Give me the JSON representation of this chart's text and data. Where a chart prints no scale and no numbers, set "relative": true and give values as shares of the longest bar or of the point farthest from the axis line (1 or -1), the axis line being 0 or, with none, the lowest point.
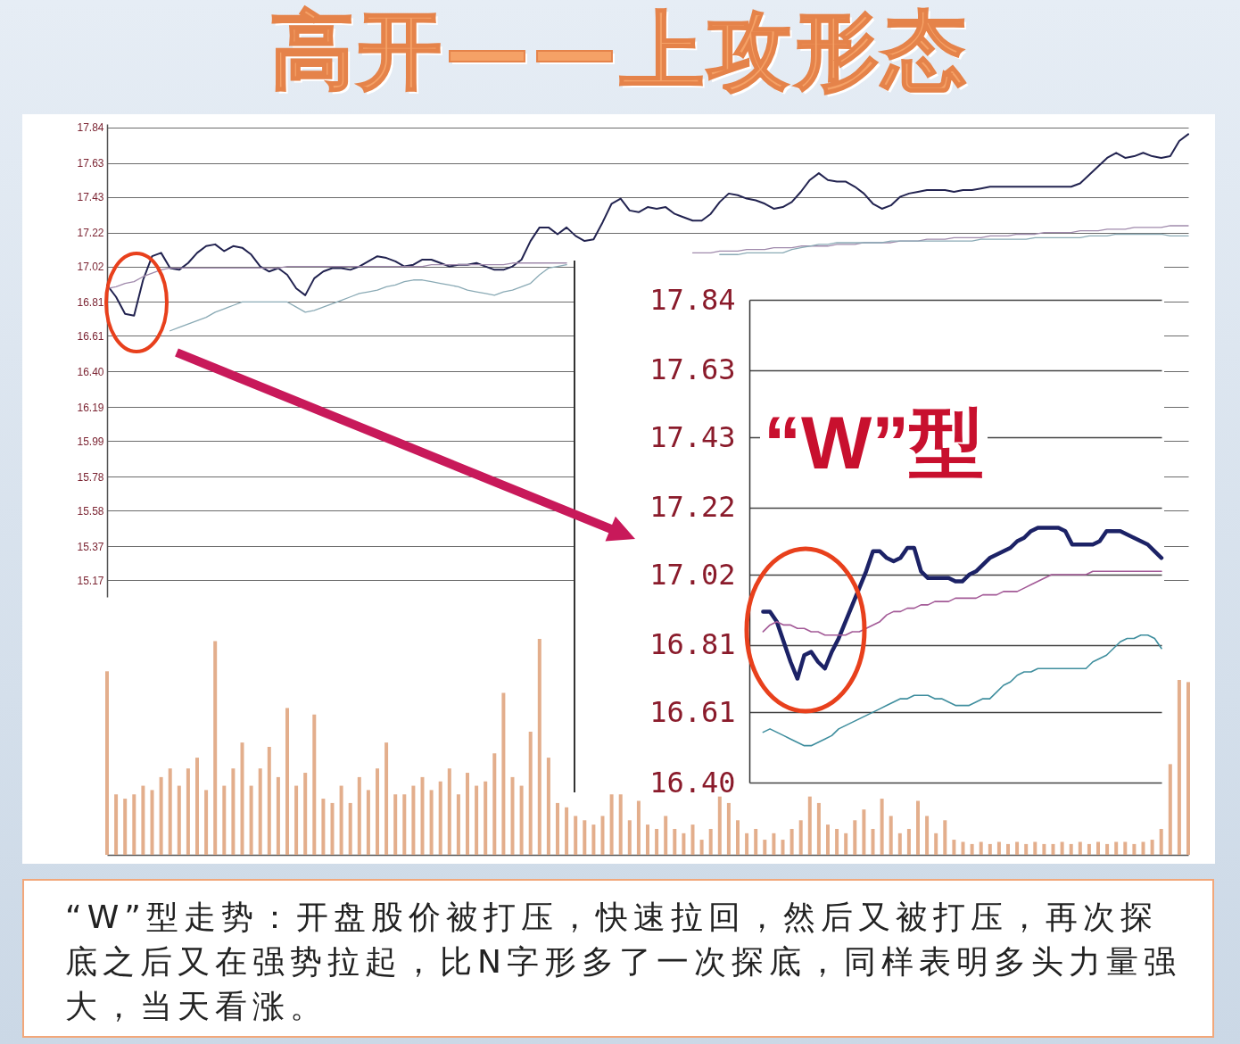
{
  "chart_data": [
    {
      "type": "line",
      "title": "高开——上攻形态",
      "annotations": [
        "“W”型走势：开盘股价被打压，快速拉回，然后又被打压，再次探底之后又在强势拉起，比N字形多了一次探底，同样表明多头力量强大，当天看涨。"
      ],
      "categories": [
        null,
        null,
        null,
        null,
        null,
        null,
        null,
        null,
        null,
        null,
        null,
        null,
        null,
        null,
        null,
        null,
        null,
        null,
        null,
        null,
        null,
        null,
        null,
        null,
        null,
        null,
        null,
        null,
        null,
        null,
        null,
        null,
        null,
        null,
        null,
        null,
        null,
        null,
        null,
        null,
        null,
        null,
        null,
        null,
        null,
        null,
        null,
        null,
        null,
        null,
        null,
        null,
        null,
        null,
        null,
        null,
        null,
        null,
        null,
        null,
        null,
        null,
        null,
        null,
        null,
        null,
        null,
        null,
        null,
        null,
        null,
        null,
        null,
        null,
        null,
        null,
        null,
        null,
        null,
        null,
        null,
        null,
        null,
        null,
        null,
        null,
        null,
        null,
        null,
        null,
        null,
        null,
        null,
        null,
        null,
        null,
        null,
        null,
        null,
        null,
        null,
        null,
        null,
        null,
        null,
        null,
        null,
        null,
        null,
        null,
        null,
        null,
        null,
        null,
        null,
        null,
        null,
        null,
        null,
        null,
        null
      ],
      "series": [
        {
          "color": "#222350",
          "values": [
            16.91,
            16.84,
            16.74,
            16.73,
            16.94,
            17.08,
            17.1,
            17.01,
            17.0,
            17.04,
            17.1,
            17.14,
            17.15,
            17.11,
            17.14,
            17.13,
            17.09,
            17.02,
            16.99,
            17.01,
            16.97,
            16.89,
            16.85,
            16.95,
            16.99,
            17.01,
            17.01,
            17.0,
            17.02,
            17.05,
            17.08,
            17.07,
            17.05,
            17.02,
            17.03,
            17.06,
            17.06,
            17.04,
            17.02,
            17.03,
            17.03,
            17.04,
            17.02,
            17.0,
            17.0,
            17.02,
            17.06,
            17.17,
            17.25,
            17.25,
            17.21,
            17.25,
            17.2,
            17.17,
            17.18,
            17.28,
            17.39,
            17.42,
            17.35,
            17.34,
            17.37,
            17.36,
            17.37,
            17.33,
            17.31,
            17.29,
            17.29,
            17.33,
            17.4,
            17.45,
            17.44,
            17.42,
            17.41,
            17.39,
            17.36,
            17.37,
            17.4,
            17.46,
            17.53,
            17.57,
            17.53,
            17.52,
            17.52,
            17.49,
            17.45,
            17.39,
            17.36,
            17.38,
            17.43,
            17.45,
            17.46,
            17.47,
            17.47,
            17.47,
            17.46,
            17.47,
            17.47,
            17.48,
            17.49,
            17.49,
            17.49,
            17.49,
            17.49,
            17.49,
            17.49,
            17.49,
            17.49,
            17.49,
            17.51,
            17.56,
            17.61,
            17.66,
            17.69,
            17.66,
            17.67,
            17.69,
            17.67,
            17.66,
            17.67,
            17.76,
            17.8
          ]
        },
        {
          "color": "#a08aac",
          "values": [
            16.89,
            16.9,
            16.92,
            16.93,
            16.96,
            16.98,
            17.0,
            17.01,
            17.01,
            17.01,
            17.01,
            17.01,
            17.01,
            17.01,
            17.01,
            17.01,
            17.01,
            17.01,
            17.01,
            17.01,
            17.02,
            17.02,
            17.02,
            17.02,
            17.02,
            17.02,
            17.02,
            17.02,
            17.02,
            17.02,
            17.02,
            17.02,
            17.02,
            17.02,
            17.02,
            17.02,
            17.03,
            17.03,
            17.03,
            17.03,
            17.03,
            17.03,
            17.03,
            17.03,
            17.03,
            17.04,
            17.04,
            17.04,
            17.04,
            17.04,
            17.04,
            17.04,
            null,
            null,
            null,
            null,
            null,
            null,
            null,
            null,
            null,
            null,
            null,
            null,
            null,
            17.1,
            17.1,
            17.1,
            17.11,
            17.11,
            17.11,
            17.12,
            17.12,
            17.12,
            17.13,
            17.13,
            17.13,
            17.14,
            17.14,
            17.14,
            17.14,
            17.15,
            17.15,
            17.15,
            17.16,
            17.16,
            17.16,
            17.16,
            17.17,
            17.17,
            17.17,
            17.18,
            17.18,
            17.18,
            17.19,
            17.19,
            17.19,
            17.19,
            17.2,
            17.2,
            17.2,
            17.21,
            17.21,
            17.21,
            17.22,
            17.22,
            17.22,
            17.22,
            17.23,
            17.23,
            17.23,
            17.24,
            17.24,
            17.24,
            17.25,
            17.25,
            17.25,
            17.25,
            17.26,
            17.26,
            17.26
          ]
        },
        {
          "color": "#8aaab5",
          "values": [
            null,
            null,
            null,
            null,
            null,
            null,
            null,
            16.64,
            16.66,
            16.68,
            16.7,
            16.72,
            16.75,
            16.77,
            16.79,
            16.81,
            16.81,
            16.81,
            16.81,
            16.81,
            16.81,
            16.78,
            16.75,
            16.76,
            16.78,
            16.8,
            16.82,
            16.84,
            16.86,
            16.87,
            16.88,
            16.9,
            16.91,
            16.93,
            16.94,
            16.94,
            16.93,
            16.92,
            16.91,
            16.9,
            16.88,
            16.87,
            16.86,
            16.85,
            16.87,
            16.88,
            16.9,
            16.92,
            16.97,
            17.01,
            17.02,
            17.03,
            null,
            null,
            null,
            null,
            null,
            null,
            null,
            null,
            null,
            null,
            null,
            null,
            null,
            null,
            null,
            null,
            17.09,
            17.09,
            17.09,
            17.1,
            17.1,
            17.1,
            17.1,
            17.1,
            17.12,
            17.13,
            17.14,
            17.15,
            17.15,
            17.16,
            17.16,
            17.16,
            17.16,
            17.16,
            17.16,
            17.17,
            17.17,
            17.17,
            17.17,
            17.17,
            17.17,
            17.17,
            17.17,
            17.17,
            17.17,
            17.18,
            17.18,
            17.18,
            17.18,
            17.18,
            17.18,
            17.19,
            17.19,
            17.19,
            17.19,
            17.19,
            17.19,
            17.2,
            17.2,
            17.2,
            17.21,
            17.21,
            17.21,
            17.21,
            17.21,
            17.21,
            17.2,
            17.2,
            17.2
          ]
        }
      ],
      "ylim": [
        15.07,
        17.86
      ],
      "yticks": [
        17.84,
        17.63,
        17.43,
        17.22,
        17.02,
        16.81,
        16.61,
        {
          "value": 16.4,
          "label": "16.40"
        },
        16.19,
        15.99,
        15.78,
        15.58,
        15.37,
        15.17
      ],
      "grid": "y"
    },
    {
      "type": "bar",
      "relative": true,
      "color": "#e3ae8c",
      "categories": [
        null,
        null,
        null,
        null,
        null,
        null,
        null,
        null,
        null,
        null,
        null,
        null,
        null,
        null,
        null,
        null,
        null,
        null,
        null,
        null,
        null,
        null,
        null,
        null,
        null,
        null,
        null,
        null,
        null,
        null,
        null,
        null,
        null,
        null,
        null,
        null,
        null,
        null,
        null,
        null,
        null,
        null,
        null,
        null,
        null,
        null,
        null,
        null,
        null,
        null,
        null,
        null,
        null,
        null,
        null,
        null,
        null,
        null,
        null,
        null,
        null,
        null,
        null,
        null,
        null,
        null,
        null,
        null,
        null,
        null,
        null,
        null,
        null,
        null,
        null,
        null,
        null,
        null,
        null,
        null,
        null,
        null,
        null,
        null,
        null,
        null,
        null,
        null,
        null,
        null,
        null,
        null,
        null,
        null,
        null,
        null,
        null,
        null,
        null,
        null,
        null,
        null,
        null,
        null,
        null,
        null,
        null,
        null,
        null,
        null,
        null,
        null,
        null,
        null,
        null,
        null,
        null,
        null,
        null,
        null,
        null
      ],
      "values": [
        0.85,
        0.28,
        0.26,
        0.28,
        0.32,
        0.3,
        0.36,
        0.4,
        0.32,
        0.4,
        0.45,
        0.3,
        0.99,
        0.32,
        0.4,
        0.52,
        0.32,
        0.4,
        0.5,
        0.36,
        0.68,
        0.32,
        0.38,
        0.65,
        0.26,
        0.24,
        0.32,
        0.24,
        0.36,
        0.3,
        0.4,
        0.52,
        0.28,
        0.28,
        0.32,
        0.36,
        0.3,
        0.34,
        0.4,
        0.28,
        0.38,
        0.32,
        0.34,
        0.47,
        0.75,
        0.36,
        0.32,
        0.57,
        1,
        0.45,
        0.24,
        0.22,
        0.18,
        0.16,
        0.14,
        0.18,
        0.28,
        0.28,
        0.16,
        0.25,
        0.14,
        0.12,
        0.18,
        0.12,
        0.1,
        0.14,
        0.07,
        0.12,
        0.27,
        0.24,
        0.16,
        0.1,
        0.12,
        0.07,
        0.1,
        0.07,
        0.12,
        0.16,
        0.27,
        0.24,
        0.14,
        0.12,
        0.1,
        0.16,
        0.21,
        0.12,
        0.26,
        0.18,
        0.1,
        0.12,
        0.25,
        0.18,
        0.1,
        0.16,
        0.07,
        0.06,
        0.05,
        0.06,
        0.05,
        0.06,
        0.05,
        0.06,
        0.05,
        0.06,
        0.05,
        0.05,
        0.06,
        0.05,
        0.06,
        0.05,
        0.06,
        0.05,
        0.06,
        0.06,
        0.05,
        0.06,
        0.07,
        0.12,
        0.42,
        0.81,
        0.8
      ]
    },
    {
      "type": "line",
      "annotations": [
        "“W”型"
      ],
      "categories": [
        null,
        null,
        null,
        null,
        null,
        null,
        null,
        null,
        null,
        null,
        null,
        null,
        null,
        null,
        null,
        null,
        null,
        null,
        null,
        null,
        null,
        null,
        null,
        null,
        null,
        null,
        null,
        null,
        null,
        null,
        null,
        null,
        null,
        null,
        null,
        null,
        null,
        null,
        null,
        null,
        null,
        null,
        null,
        null,
        null,
        null,
        null,
        null,
        null,
        null,
        null,
        null,
        null,
        null,
        null,
        null,
        null,
        null,
        null,
        null,
        null
      ],
      "series": [
        {
          "color": "#1c2266",
          "values": [
            null,
            null,
            16.91,
            16.91,
            16.88,
            16.82,
            16.76,
            16.71,
            16.78,
            16.79,
            16.76,
            16.74,
            16.79,
            16.83,
            16.88,
            16.93,
            16.98,
            17.03,
            17.09,
            17.09,
            17.07,
            17.06,
            17.07,
            17.1,
            17.1,
            17.03,
            17.01,
            17.01,
            17.01,
            17.01,
            17.0,
            17.0,
            17.02,
            17.03,
            17.05,
            17.07,
            17.08,
            17.09,
            17.1,
            17.12,
            17.13,
            17.15,
            17.16,
            17.16,
            17.16,
            17.16,
            17.15,
            17.11,
            17.11,
            17.11,
            17.11,
            17.12,
            17.15,
            17.15,
            17.15,
            17.14,
            17.13,
            17.12,
            17.11,
            17.09,
            17.07
          ]
        },
        {
          "color": "#a35a97",
          "values": [
            null,
            null,
            16.85,
            16.87,
            16.88,
            16.87,
            16.87,
            16.86,
            16.86,
            16.85,
            16.85,
            16.84,
            16.84,
            16.84,
            16.84,
            16.85,
            16.85,
            16.86,
            16.87,
            16.88,
            16.9,
            16.91,
            16.91,
            16.92,
            16.92,
            16.93,
            16.93,
            16.94,
            16.94,
            16.94,
            16.95,
            16.95,
            16.95,
            16.95,
            16.96,
            16.96,
            16.96,
            16.97,
            16.97,
            16.97,
            16.98,
            16.99,
            17.0,
            17.01,
            17.02,
            17.02,
            17.02,
            17.02,
            17.02,
            17.02,
            17.03,
            17.03,
            17.03,
            17.03,
            17.03,
            17.03,
            17.03,
            17.03,
            17.03,
            17.03,
            17.03
          ]
        },
        {
          "color": "#3f8e9e",
          "values": [
            null,
            null,
            16.55,
            16.56,
            16.55,
            16.54,
            16.53,
            16.52,
            16.51,
            16.51,
            16.52,
            16.53,
            16.54,
            16.56,
            16.57,
            16.58,
            16.59,
            16.6,
            16.61,
            16.62,
            16.63,
            16.64,
            16.65,
            16.65,
            16.66,
            16.66,
            16.66,
            16.65,
            16.65,
            16.64,
            16.63,
            16.63,
            16.63,
            16.64,
            16.65,
            16.65,
            16.67,
            16.69,
            16.7,
            16.72,
            16.73,
            16.73,
            16.74,
            16.74,
            16.74,
            16.74,
            16.74,
            16.74,
            16.74,
            16.74,
            16.76,
            16.77,
            16.78,
            16.8,
            16.82,
            16.83,
            16.83,
            16.84,
            16.84,
            16.83,
            16.8
          ]
        }
      ],
      "ylim": [
        16.4,
        17.84
      ],
      "yticks": [
        17.84,
        17.63,
        17.43,
        17.22,
        17.02,
        16.81,
        16.61,
        {
          "value": 16.4,
          "label": "16.40"
        }
      ],
      "grid": "y"
    }
  ]
}
